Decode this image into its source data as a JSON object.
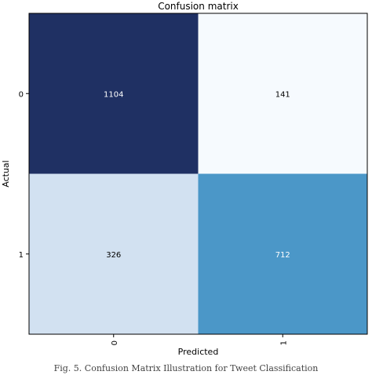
{
  "chart_data": {
    "type": "heatmap",
    "title": "Confusion matrix",
    "xlabel": "Predicted",
    "ylabel": "Actual",
    "x_categories": [
      "0",
      "1"
    ],
    "y_categories": [
      "0",
      "1"
    ],
    "values": [
      [
        1104,
        141
      ],
      [
        326,
        712
      ]
    ],
    "colormap": "Blues",
    "cell_colors": [
      [
        "#1f3063",
        "#f6fafe"
      ],
      [
        "#d2e1f1",
        "#4b97c8"
      ]
    ],
    "text_colors": [
      [
        "#ffffff",
        "#000000"
      ],
      [
        "#000000",
        "#ffffff"
      ]
    ],
    "grid": false,
    "legend": "none"
  },
  "caption": "Fig. 5.  Confusion Matrix Illustration for Tweet Classification"
}
